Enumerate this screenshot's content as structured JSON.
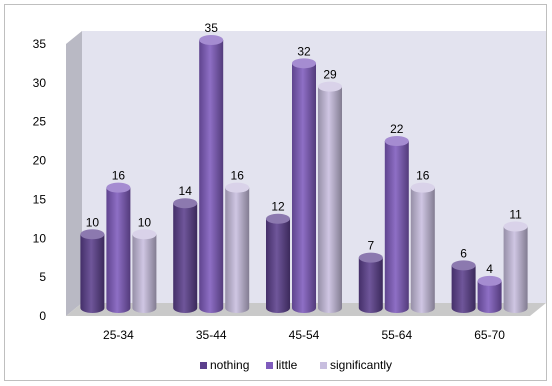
{
  "chart_data": {
    "type": "bar",
    "style": "3d-cylinder",
    "title": "",
    "xlabel": "",
    "ylabel": "",
    "categories": [
      "25-34",
      "35-44",
      "45-54",
      "55-64",
      "65-70"
    ],
    "series": [
      {
        "name": "nothing",
        "values": [
          10,
          14,
          12,
          7,
          6
        ],
        "color": "#5b3f8c"
      },
      {
        "name": "little",
        "values": [
          16,
          35,
          32,
          22,
          4
        ],
        "color": "#7f5bbd"
      },
      {
        "name": "significantly",
        "values": [
          10,
          16,
          29,
          16,
          11
        ],
        "color": "#c8bedf"
      }
    ],
    "data_labels": [
      [
        "10",
        "14",
        "12",
        "7",
        "6"
      ],
      [
        "16",
        "35",
        "32",
        "22",
        "4"
      ],
      [
        "10",
        "16",
        "29",
        "16",
        "11"
      ]
    ],
    "ylim": [
      0,
      35
    ],
    "yticks": [
      "0",
      "5",
      "10",
      "15",
      "20",
      "25",
      "30",
      "35"
    ],
    "ytick_values": [
      0,
      5,
      10,
      15,
      20,
      25,
      30,
      35
    ],
    "grid": false,
    "legend": "bottom",
    "wall_color": "#e3e3ef",
    "floor_color": "#c9c9c9"
  }
}
